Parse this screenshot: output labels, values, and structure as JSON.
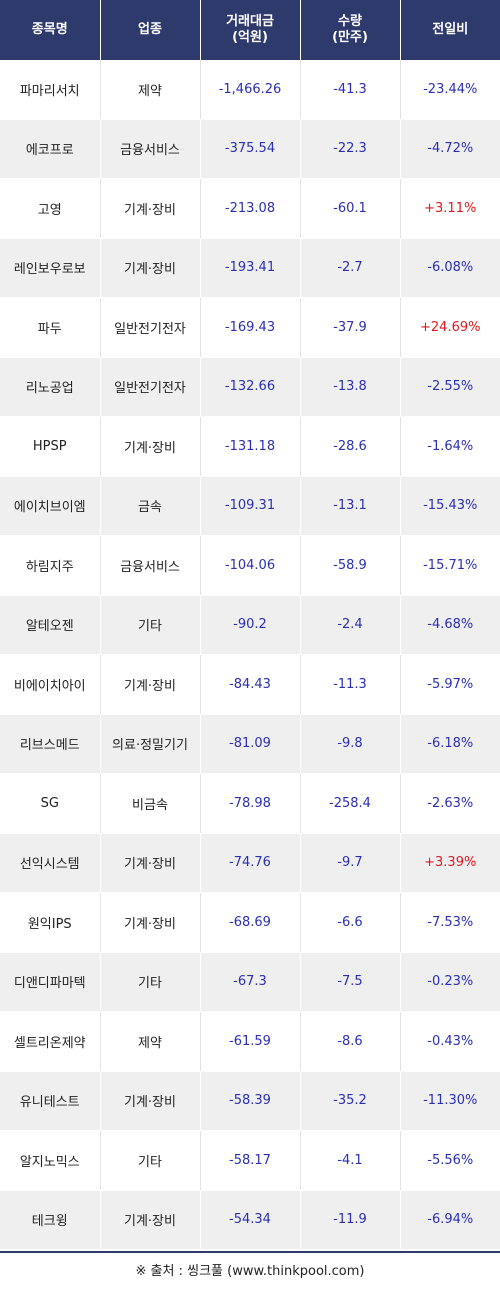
{
  "header": {
    "name": "종목명",
    "sector": "업종",
    "amount_line1": "거래대금",
    "amount_line2": "(억원)",
    "qty_line1": "수량",
    "qty_line2": "(만주)",
    "change": "전일비"
  },
  "rows": [
    {
      "name": "파마리서치",
      "sector": "제약",
      "amount": "-1,466.26",
      "qty": "-41.3",
      "change": "-23.44%",
      "dir": "neg"
    },
    {
      "name": "에코프로",
      "sector": "금융서비스",
      "amount": "-375.54",
      "qty": "-22.3",
      "change": "-4.72%",
      "dir": "neg"
    },
    {
      "name": "고영",
      "sector": "기계·장비",
      "amount": "-213.08",
      "qty": "-60.1",
      "change": "+3.11%",
      "dir": "pos"
    },
    {
      "name": "레인보우로보",
      "sector": "기계·장비",
      "amount": "-193.41",
      "qty": "-2.7",
      "change": "-6.08%",
      "dir": "neg"
    },
    {
      "name": "파두",
      "sector": "일반전기전자",
      "amount": "-169.43",
      "qty": "-37.9",
      "change": "+24.69%",
      "dir": "pos"
    },
    {
      "name": "리노공업",
      "sector": "일반전기전자",
      "amount": "-132.66",
      "qty": "-13.8",
      "change": "-2.55%",
      "dir": "neg"
    },
    {
      "name": "HPSP",
      "sector": "기계·장비",
      "amount": "-131.18",
      "qty": "-28.6",
      "change": "-1.64%",
      "dir": "neg"
    },
    {
      "name": "에이치브이엠",
      "sector": "금속",
      "amount": "-109.31",
      "qty": "-13.1",
      "change": "-15.43%",
      "dir": "neg"
    },
    {
      "name": "하림지주",
      "sector": "금융서비스",
      "amount": "-104.06",
      "qty": "-58.9",
      "change": "-15.71%",
      "dir": "neg"
    },
    {
      "name": "알테오젠",
      "sector": "기타",
      "amount": "-90.2",
      "qty": "-2.4",
      "change": "-4.68%",
      "dir": "neg"
    },
    {
      "name": "비에이치아이",
      "sector": "기계·장비",
      "amount": "-84.43",
      "qty": "-11.3",
      "change": "-5.97%",
      "dir": "neg"
    },
    {
      "name": "리브스메드",
      "sector": "의료·정밀기기",
      "amount": "-81.09",
      "qty": "-9.8",
      "change": "-6.18%",
      "dir": "neg"
    },
    {
      "name": "SG",
      "sector": "비금속",
      "amount": "-78.98",
      "qty": "-258.4",
      "change": "-2.63%",
      "dir": "neg"
    },
    {
      "name": "선익시스템",
      "sector": "기계·장비",
      "amount": "-74.76",
      "qty": "-9.7",
      "change": "+3.39%",
      "dir": "pos"
    },
    {
      "name": "원익IPS",
      "sector": "기계·장비",
      "amount": "-68.69",
      "qty": "-6.6",
      "change": "-7.53%",
      "dir": "neg"
    },
    {
      "name": "디앤디파마텍",
      "sector": "기타",
      "amount": "-67.3",
      "qty": "-7.5",
      "change": "-0.23%",
      "dir": "neg"
    },
    {
      "name": "셀트리온제약",
      "sector": "제약",
      "amount": "-61.59",
      "qty": "-8.6",
      "change": "-0.43%",
      "dir": "neg"
    },
    {
      "name": "유니테스트",
      "sector": "기계·장비",
      "amount": "-58.39",
      "qty": "-35.2",
      "change": "-11.30%",
      "dir": "neg"
    },
    {
      "name": "알지노믹스",
      "sector": "기타",
      "amount": "-58.17",
      "qty": "-4.1",
      "change": "-5.56%",
      "dir": "neg"
    },
    {
      "name": "테크윙",
      "sector": "기계·장비",
      "amount": "-54.34",
      "qty": "-11.9",
      "change": "-6.94%",
      "dir": "neg"
    }
  ],
  "source": "※ 출처 : 씽크풀 (www.thinkpool.com)"
}
